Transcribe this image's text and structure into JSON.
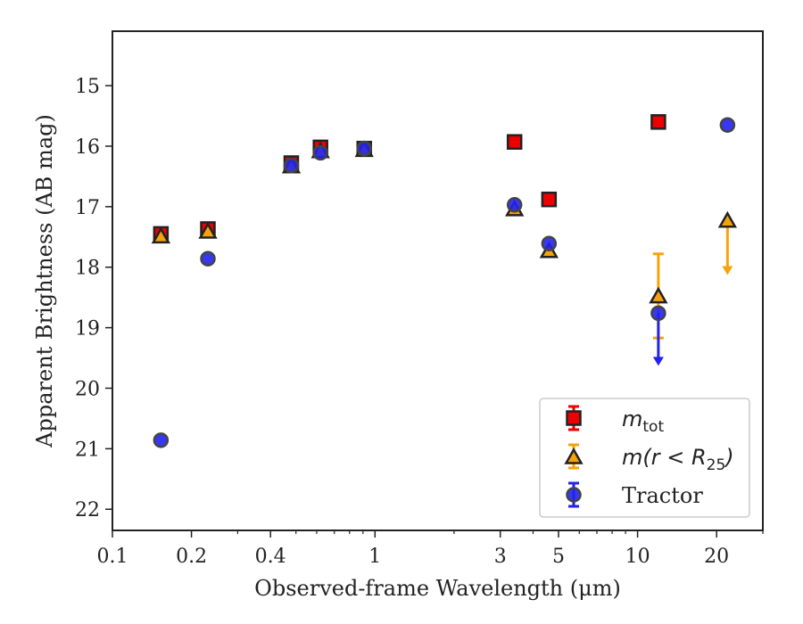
{
  "chart_data": {
    "type": "scatter",
    "xlabel": "Observed-frame Wavelength (μm)",
    "ylabel": "Apparent Brightness (AB mag)",
    "xscale": "log",
    "xlim": [
      0.1,
      30
    ],
    "ylim": [
      22.35,
      14.1
    ],
    "y_inverted": true,
    "xticks": [
      {
        "value": 0.1,
        "label": "0.1"
      },
      {
        "value": 0.2,
        "label": "0.2"
      },
      {
        "value": 0.4,
        "label": "0.4"
      },
      {
        "value": 1,
        "label": "1"
      },
      {
        "value": 3,
        "label": "3"
      },
      {
        "value": 5,
        "label": "5"
      },
      {
        "value": 10,
        "label": "10"
      },
      {
        "value": 20,
        "label": "20"
      }
    ],
    "yticks": [
      {
        "value": 15,
        "label": "15"
      },
      {
        "value": 16,
        "label": "16"
      },
      {
        "value": 17,
        "label": "17"
      },
      {
        "value": 18,
        "label": "18"
      },
      {
        "value": 19,
        "label": "19"
      },
      {
        "value": 20,
        "label": "20"
      },
      {
        "value": 21,
        "label": "21"
      },
      {
        "value": 22,
        "label": "22"
      }
    ],
    "legend_position": "lower-right",
    "grid": false,
    "series": [
      {
        "name": "m_tot",
        "label_main": "m",
        "label_sub": "tot",
        "marker": "square",
        "color": "#ee0000",
        "points": [
          {
            "x": 0.153,
            "y": 17.45
          },
          {
            "x": 0.231,
            "y": 17.37
          },
          {
            "x": 0.48,
            "y": 16.28
          },
          {
            "x": 0.62,
            "y": 16.02
          },
          {
            "x": 0.91,
            "y": 16.04
          },
          {
            "x": 3.4,
            "y": 15.93
          },
          {
            "x": 4.6,
            "y": 16.88
          },
          {
            "x": 12.0,
            "y": 15.6
          }
        ]
      },
      {
        "name": "m(r < R_25)",
        "label_main": "m(r < R",
        "label_sub": "25",
        "label_tail": ")",
        "marker": "triangle",
        "color": "#f5a30b",
        "points": [
          {
            "x": 0.153,
            "y": 17.48
          },
          {
            "x": 0.231,
            "y": 17.4
          },
          {
            "x": 0.48,
            "y": 16.32
          },
          {
            "x": 0.62,
            "y": 16.07
          },
          {
            "x": 0.91,
            "y": 16.05
          },
          {
            "x": 3.4,
            "y": 17.03
          },
          {
            "x": 4.6,
            "y": 17.72
          },
          {
            "x": 12.0,
            "y": 18.47,
            "yerr_low": 17.78,
            "yerr_high": 19.17
          },
          {
            "x": 22.0,
            "y": 17.22,
            "upper_limit": true,
            "arrow_to": 18.1
          }
        ]
      },
      {
        "name": "Tractor",
        "label_main": "Tractor",
        "marker": "circle",
        "color": "#2222ee",
        "points": [
          {
            "x": 0.153,
            "y": 20.86
          },
          {
            "x": 0.231,
            "y": 17.86
          },
          {
            "x": 0.48,
            "y": 16.32
          },
          {
            "x": 0.62,
            "y": 16.11
          },
          {
            "x": 0.91,
            "y": 16.04
          },
          {
            "x": 3.4,
            "y": 16.97
          },
          {
            "x": 4.6,
            "y": 17.61
          },
          {
            "x": 12.0,
            "y": 18.76,
            "upper_limit": true,
            "arrow_to": 19.6
          },
          {
            "x": 22.0,
            "y": 15.65
          }
        ]
      }
    ]
  }
}
